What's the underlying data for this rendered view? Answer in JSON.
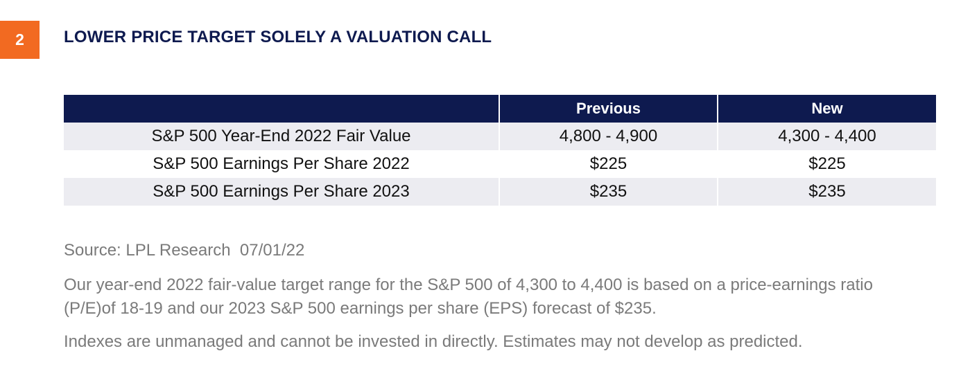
{
  "badge": {
    "number": "2",
    "color": "#f26a21"
  },
  "title": "LOWER PRICE TARGET SOLELY A VALUATION CALL",
  "table": {
    "header_color": "#0e1a4f",
    "columns": [
      "",
      "Previous",
      "New"
    ],
    "rows": [
      {
        "label": "S&P 500 Year-End 2022 Fair Value",
        "previous": "4,800 - 4,900",
        "new": "4,300 - 4,400"
      },
      {
        "label": "S&P 500 Earnings Per Share 2022",
        "previous": "$225",
        "new": "$225"
      },
      {
        "label": "S&P 500 Earnings Per Share 2023",
        "previous": "$235",
        "new": "$235"
      }
    ]
  },
  "source": "Source: LPL Research  07/01/22",
  "notes": [
    "Our year-end 2022 fair-value target range for the S&P 500 of 4,300 to 4,400 is based on a price-earnings ratio (P/E)of 18-19 and our 2023 S&P 500 earnings per share (EPS) forecast of $235.",
    "Indexes are unmanaged and cannot be invested in directly. Estimates may not develop as predicted."
  ]
}
